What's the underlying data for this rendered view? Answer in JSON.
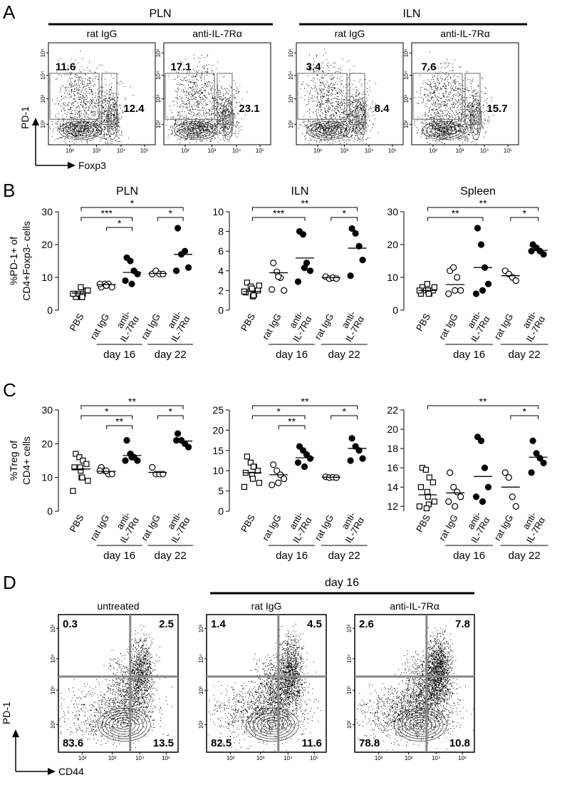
{
  "panel_a": {
    "letter": "A",
    "groups": [
      "PLN",
      "ILN"
    ],
    "plots": [
      {
        "title": "rat IgG",
        "gates": [
          11.6,
          12.4
        ]
      },
      {
        "title": "anti-IL-7Rα",
        "gates": [
          17.1,
          23.1
        ]
      },
      {
        "title": "rat IgG",
        "gates": [
          3.4,
          8.4
        ]
      },
      {
        "title": "anti-IL-7Rα",
        "gates": [
          7.6,
          15.7
        ]
      }
    ],
    "y_axis": "PD-1",
    "x_axis": "Foxp3",
    "ticks": [
      "10²",
      "10³",
      "10⁴",
      "10⁵"
    ]
  },
  "panel_b": {
    "letter": "B"
  },
  "panel_c": {
    "letter": "C"
  },
  "chart_data": [
    {
      "type": "dot",
      "title": "PLN",
      "ylabel": [
        "%PD-1+ of",
        "CD4+Foxp3- cells"
      ],
      "categories": [
        "PBS",
        "rat IgG",
        "anti-IL-7Rα",
        "rat IgG",
        "anti-IL-7Rα"
      ],
      "markers": [
        "square-open",
        "circle-open",
        "circle-filled",
        "circle-open",
        "circle-filled"
      ],
      "values": [
        [
          4,
          5,
          5,
          6,
          5,
          7,
          4,
          6,
          5,
          4
        ],
        [
          7,
          8,
          8,
          7,
          8,
          7.5
        ],
        [
          16,
          15,
          12,
          11,
          9,
          8
        ],
        [
          11,
          12,
          11,
          11
        ],
        [
          25,
          17,
          18,
          13,
          12
        ]
      ],
      "medians": [
        5.2,
        7.8,
        11.5,
        11.2,
        17
      ],
      "ylim": [
        0,
        30
      ],
      "yticks": [
        0,
        10,
        20,
        30
      ],
      "significance": [
        {
          "span": [
            0,
            4
          ],
          "label": "*"
        },
        {
          "span": [
            0,
            2
          ],
          "label": "***"
        },
        {
          "span": [
            1,
            2
          ],
          "label": "*"
        },
        {
          "span": [
            3,
            4
          ],
          "label": "*"
        }
      ],
      "groups": [
        {
          "label": "day 16",
          "span": [
            1,
            2
          ]
        },
        {
          "label": "day 22",
          "span": [
            3,
            4
          ]
        }
      ]
    },
    {
      "type": "dot",
      "title": "ILN",
      "categories": [
        "PBS",
        "rat IgG",
        "anti-IL-7Rα",
        "rat IgG",
        "anti-IL-7Rα"
      ],
      "markers": [
        "square-open",
        "circle-open",
        "circle-filled",
        "circle-open",
        "circle-filled"
      ],
      "values": [
        [
          2.8,
          2.4,
          1.6,
          2.0,
          1.8,
          2.2,
          1.4,
          2.5,
          1.9,
          1.5
        ],
        [
          4.8,
          3.9,
          3.3,
          2.0,
          2.1,
          3.4
        ],
        [
          8.0,
          7.7,
          4.8,
          4.0,
          2.9,
          4.3
        ],
        [
          3.4,
          3.2,
          3.3,
          3.2
        ],
        [
          8.3,
          7.8,
          6.5,
          5.1,
          3.5
        ]
      ],
      "medians": [
        1.9,
        3.8,
        5.3,
        3.3,
        6.3
      ],
      "ylim": [
        0,
        10
      ],
      "yticks": [
        0,
        2,
        4,
        6,
        8,
        10
      ],
      "significance": [
        {
          "span": [
            0,
            4
          ],
          "label": "**"
        },
        {
          "span": [
            0,
            2
          ],
          "label": "***"
        },
        {
          "span": [
            3,
            4
          ],
          "label": "*"
        }
      ],
      "groups": [
        {
          "label": "day 16",
          "span": [
            1,
            2
          ]
        },
        {
          "label": "day 22",
          "span": [
            3,
            4
          ]
        }
      ]
    },
    {
      "type": "dot",
      "title": "Spleen",
      "categories": [
        "PBS",
        "rat IgG",
        "anti-IL-7Rα",
        "rat IgG",
        "anti-IL-7Rα"
      ],
      "markers": [
        "square-open",
        "circle-open",
        "circle-filled",
        "circle-open",
        "circle-filled"
      ],
      "values": [
        [
          7,
          6,
          5,
          6,
          5,
          8,
          6,
          7,
          6,
          5
        ],
        [
          12,
          13,
          10,
          6,
          5,
          6
        ],
        [
          25,
          20,
          13,
          8,
          5,
          6
        ],
        [
          12,
          11,
          10,
          9
        ],
        [
          20,
          19,
          18,
          17,
          18
        ]
      ],
      "medians": [
        6,
        7.8,
        13,
        10.5,
        18.2
      ],
      "ylim": [
        0,
        30
      ],
      "yticks": [
        0,
        10,
        20,
        30
      ],
      "significance": [
        {
          "span": [
            0,
            4
          ],
          "label": "**"
        },
        {
          "span": [
            0,
            2
          ],
          "label": "**"
        },
        {
          "span": [
            3,
            4
          ],
          "label": "*"
        }
      ],
      "groups": [
        {
          "label": "day 16",
          "span": [
            1,
            2
          ]
        },
        {
          "label": "day 22",
          "span": [
            3,
            4
          ]
        }
      ]
    },
    {
      "type": "dot",
      "ylabel": [
        "%Treg of",
        "CD4+ cells"
      ],
      "categories": [
        "PBS",
        "rat IgG",
        "anti-IL-7Rα",
        "rat IgG",
        "anti-IL-7Rα"
      ],
      "markers": [
        "square-open",
        "circle-open",
        "circle-filled",
        "circle-open",
        "circle-filled"
      ],
      "values": [
        [
          17,
          16,
          15,
          14,
          13,
          12,
          10,
          9,
          6,
          10,
          13
        ],
        [
          13,
          12,
          11,
          11,
          12,
          12
        ],
        [
          21,
          17,
          16,
          15,
          15,
          16
        ],
        [
          13,
          11,
          11,
          11
        ],
        [
          23,
          21,
          20,
          19,
          21
        ]
      ],
      "medians": [
        12.5,
        11.8,
        16.5,
        11.5,
        20.8
      ],
      "ylim": [
        0,
        30
      ],
      "yticks": [
        0,
        10,
        20,
        30
      ],
      "significance": [
        {
          "span": [
            0,
            4
          ],
          "label": "**"
        },
        {
          "span": [
            0,
            2
          ],
          "label": "*"
        },
        {
          "span": [
            1,
            2
          ],
          "label": "**"
        },
        {
          "span": [
            3,
            4
          ],
          "label": "*"
        }
      ],
      "groups": [
        {
          "label": "day 16",
          "span": [
            1,
            2
          ]
        },
        {
          "label": "day 22",
          "span": [
            3,
            4
          ]
        }
      ]
    },
    {
      "type": "dot",
      "categories": [
        "PBS",
        "rat IgG",
        "anti-IL-7Rα",
        "rat IgG",
        "anti-IL-7Rα"
      ],
      "markers": [
        "square-open",
        "circle-open",
        "circle-filled",
        "circle-open",
        "circle-filled"
      ],
      "values": [
        [
          13.5,
          12,
          11,
          10,
          9.5,
          9,
          8,
          7,
          6,
          11
        ],
        [
          11.5,
          10,
          9,
          8,
          6.5,
          7
        ],
        [
          16,
          15,
          14,
          13,
          12,
          11
        ],
        [
          8.5,
          8.3,
          8.4,
          8.3
        ],
        [
          18,
          16,
          15,
          13,
          12.5
        ]
      ],
      "medians": [
        9.5,
        9,
        13.2,
        8.4,
        15.5
      ],
      "ylim": [
        0,
        25
      ],
      "yticks": [
        0,
        5,
        10,
        15,
        20,
        25
      ],
      "significance": [
        {
          "span": [
            0,
            4
          ],
          "label": "**"
        },
        {
          "span": [
            0,
            2
          ],
          "label": "*"
        },
        {
          "span": [
            1,
            2
          ],
          "label": "**"
        },
        {
          "span": [
            3,
            4
          ],
          "label": "*"
        }
      ],
      "groups": [
        {
          "label": "day 16",
          "span": [
            1,
            2
          ]
        },
        {
          "label": "day 22",
          "span": [
            3,
            4
          ]
        }
      ]
    },
    {
      "type": "dot",
      "categories": [
        "PBS",
        "rat IgG",
        "anti-IL-7Rα",
        "rat IgG",
        "anti-IL-7Rα"
      ],
      "markers": [
        "square-open",
        "circle-open",
        "circle-filled",
        "circle-open",
        "circle-filled"
      ],
      "values": [
        [
          16,
          15.8,
          15,
          14.5,
          14,
          13.5,
          13,
          12.5,
          12,
          12.2,
          11.8
        ],
        [
          15.5,
          14,
          13.5,
          13,
          12.5,
          12
        ],
        [
          19.2,
          18.8,
          16,
          14,
          13,
          12.5
        ],
        [
          15.5,
          15,
          13,
          12
        ],
        [
          18.8,
          17.5,
          17,
          16.5,
          15.5
        ]
      ],
      "medians": [
        13.2,
        13.4,
        15.1,
        14,
        17.1
      ],
      "ylim": [
        11.5,
        22
      ],
      "yticks": [
        12,
        14,
        16,
        18,
        20,
        22
      ],
      "significance": [
        {
          "span": [
            0,
            4
          ],
          "label": "**"
        },
        {
          "span": [
            3,
            4
          ],
          "label": "*"
        }
      ],
      "groups": [
        {
          "label": "day 16",
          "span": [
            1,
            2
          ]
        },
        {
          "label": "day 22",
          "span": [
            3,
            4
          ]
        }
      ]
    }
  ],
  "panel_d": {
    "letter": "D",
    "header": "day 16",
    "plots": [
      {
        "title": "untreated",
        "quadrants": [
          0.3,
          2.5,
          83.6,
          13.5
        ]
      },
      {
        "title": "rat IgG",
        "quadrants": [
          1.4,
          4.5,
          82.5,
          11.6
        ]
      },
      {
        "title": "anti-IL-7Rα",
        "quadrants": [
          2.6,
          7.8,
          78.8,
          10.8
        ]
      }
    ],
    "y_axis": "PD-1",
    "x_axis": "CD44",
    "ticks": [
      "10²",
      "10³",
      "10⁴",
      "10⁵"
    ]
  }
}
